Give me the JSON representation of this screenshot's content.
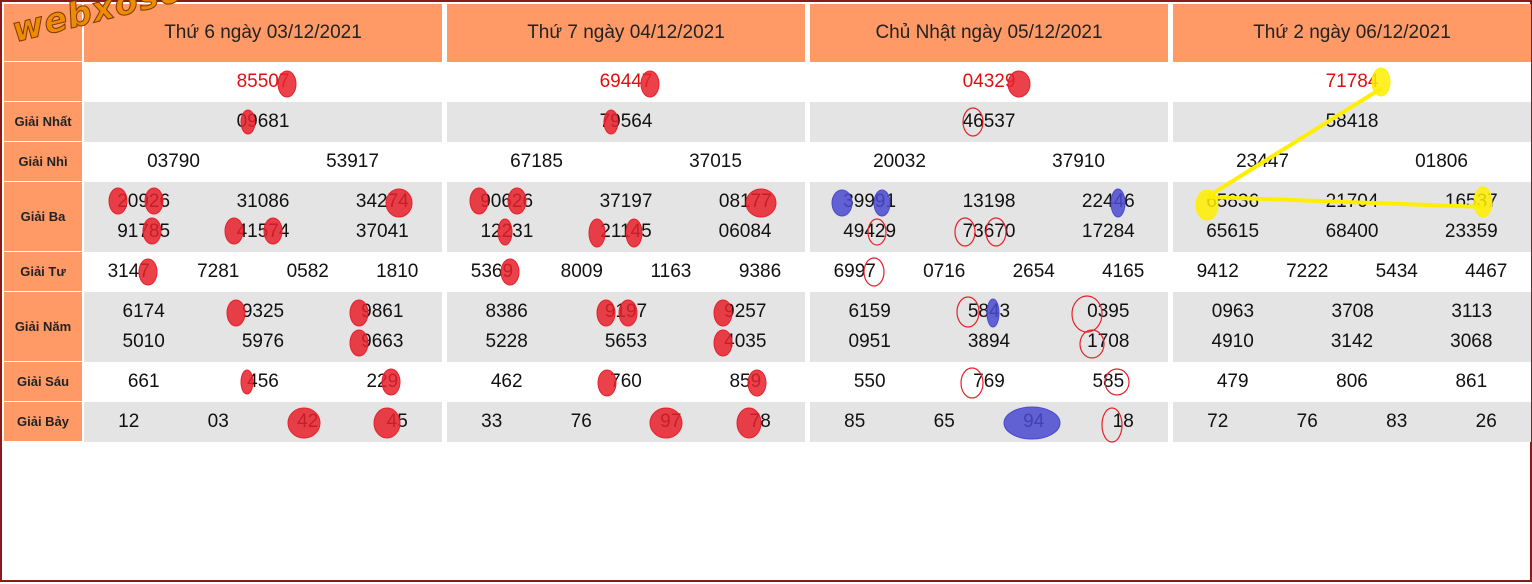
{
  "logo_text": "webxoso.net",
  "labels": [
    "",
    "",
    "Giải Nhất",
    "Giải Nhì",
    "Giải Ba",
    "Giải Tư",
    "Giải Năm",
    "Giải Sáu",
    "Giải Bảy"
  ],
  "days": [
    {
      "title": "Thứ 6 ngày 03/12/2021",
      "db": "85507",
      "g1": "09681",
      "g2": [
        "03790",
        "53917"
      ],
      "g3": [
        [
          "20926",
          "31086",
          "34274"
        ],
        [
          "91785",
          "41574",
          "37041"
        ]
      ],
      "g4": [
        "3147",
        "7281",
        "0582",
        "1810"
      ],
      "g5": [
        [
          "6174",
          "9325",
          "9861"
        ],
        [
          "5010",
          "5976",
          "9663"
        ]
      ],
      "g6": [
        "661",
        "456",
        "229"
      ],
      "g7": [
        "12",
        "03",
        "42",
        "45"
      ]
    },
    {
      "title": "Thứ 7 ngày 04/12/2021",
      "db": "69447",
      "g1": "79564",
      "g2": [
        "67185",
        "37015"
      ],
      "g3": [
        [
          "90626",
          "37197",
          "08177"
        ],
        [
          "12231",
          "21145",
          "06084"
        ]
      ],
      "g4": [
        "5369",
        "8009",
        "1163",
        "9386"
      ],
      "g5": [
        [
          "8386",
          "9197",
          "9257"
        ],
        [
          "5228",
          "5653",
          "4035"
        ]
      ],
      "g6": [
        "462",
        "760",
        "859"
      ],
      "g7": [
        "33",
        "76",
        "97",
        "78"
      ]
    },
    {
      "title": "Chủ Nhật ngày 05/12/2021",
      "db": "04329",
      "g1": "46537",
      "g2": [
        "20032",
        "37910"
      ],
      "g3": [
        [
          "39991",
          "13198",
          "22446"
        ],
        [
          "49429",
          "73670",
          "17284"
        ]
      ],
      "g4": [
        "6997",
        "0716",
        "2654",
        "4165"
      ],
      "g5": [
        [
          "6159",
          "5843",
          "0395"
        ],
        [
          "0951",
          "3894",
          "1708"
        ]
      ],
      "g6": [
        "550",
        "769",
        "585"
      ],
      "g7": [
        "85",
        "65",
        "94",
        "18"
      ]
    },
    {
      "title": "Thứ 2 ngày 06/12/2021",
      "db": "71784",
      "g1": "58418",
      "g2": [
        "23447",
        "01806"
      ],
      "g3": [
        [
          "65836",
          "21704",
          "16537"
        ],
        [
          "65615",
          "68400",
          "23359"
        ]
      ],
      "g4": [
        "9412",
        "7222",
        "5434",
        "4467"
      ],
      "g5": [
        [
          "0963",
          "3708",
          "3113"
        ],
        [
          "4910",
          "3142",
          "3068"
        ]
      ],
      "g6": [
        "479",
        "806",
        "861"
      ],
      "g7": [
        "72",
        "76",
        "83",
        "26"
      ]
    }
  ],
  "colors": {
    "header_bg": "#ff9966",
    "row_gray": "#e4e4e4",
    "special_red": "#e01010",
    "frame": "#8b1a1a",
    "mark_red": "#e8202a",
    "mark_blue": "#4a4ad0",
    "mark_yellow": "#ffee00"
  }
}
